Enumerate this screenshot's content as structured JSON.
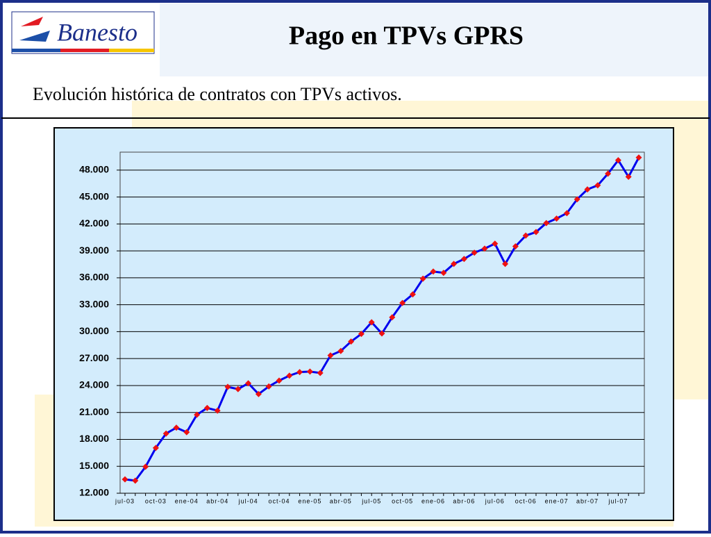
{
  "logo": "Banesto",
  "chart_data": {
    "type": "line",
    "title": "Pago en TPVs GPRS",
    "subtitle": "Evolución histórica de contratos con TPVs activos.",
    "categories": [
      "jul-03",
      null,
      null,
      "oct-03",
      null,
      null,
      "ene-04",
      null,
      null,
      "abr-04",
      null,
      null,
      "jul-04",
      null,
      null,
      "oct-04",
      null,
      null,
      "ene-05",
      null,
      null,
      "abr-05",
      null,
      null,
      "jul-05",
      null,
      null,
      "oct-05",
      null,
      null,
      "ene-06",
      null,
      null,
      "abr-06",
      null,
      null,
      "jul-06",
      null,
      null,
      "oct-06",
      null,
      null,
      "ene-07",
      null,
      null,
      "abr-07",
      null,
      null,
      "jul-07",
      null,
      null
    ],
    "values": [
      13550,
      13400,
      14950,
      17050,
      18650,
      19300,
      18800,
      20750,
      21500,
      21200,
      23850,
      23600,
      24250,
      23050,
      23900,
      24550,
      25100,
      25500,
      25550,
      25400,
      27350,
      27850,
      28900,
      29750,
      31050,
      29800,
      31600,
      33200,
      34150,
      35900,
      36700,
      36550,
      37550,
      38100,
      38800,
      39250,
      39800,
      37550,
      39500,
      40700,
      41100,
      42100,
      42600,
      43200,
      44750,
      45850,
      46300,
      47600,
      49100,
      47250,
      49400
    ],
    "color": "#0000ee",
    "marker_color": "#ee1111",
    "ylim": [
      12000,
      50000
    ],
    "yticks": [
      {
        "value": 12000,
        "label": "12.000"
      },
      {
        "value": 15000,
        "label": "15.000"
      },
      {
        "value": 18000,
        "label": "18.000"
      },
      {
        "value": 21000,
        "label": "21.000"
      },
      {
        "value": 24000,
        "label": "24.000"
      },
      {
        "value": 27000,
        "label": "27.000"
      },
      {
        "value": 30000,
        "label": "30.000"
      },
      {
        "value": 33000,
        "label": "33.000"
      },
      {
        "value": 36000,
        "label": "36.000"
      },
      {
        "value": 39000,
        "label": "39.000"
      },
      {
        "value": 42000,
        "label": "42.000"
      },
      {
        "value": 45000,
        "label": "45.000"
      },
      {
        "value": 48000,
        "label": "48.000"
      }
    ],
    "grid": true
  }
}
